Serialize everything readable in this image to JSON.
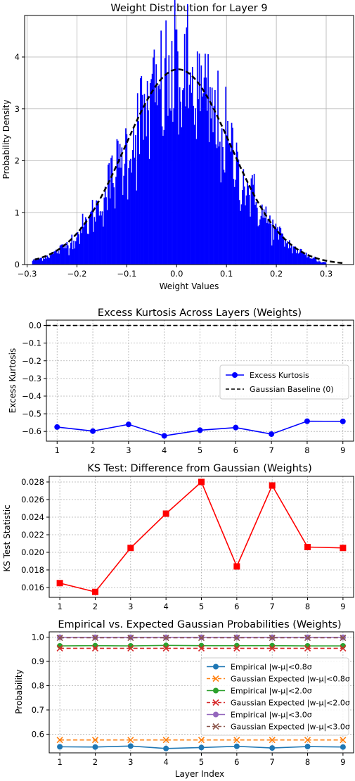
{
  "chart_data": [
    {
      "type": "histogram",
      "title": "Weight Distribution for Layer 9",
      "xlabel": "Weight Values",
      "ylabel": "Probability Density",
      "xlim": [
        -0.305,
        0.355
      ],
      "ylim": [
        0,
        4.8
      ],
      "xticks": [
        -0.3,
        -0.2,
        -0.1,
        0.0,
        0.1,
        0.2,
        0.3
      ],
      "xtick_labels": [
        "−0.3",
        "−0.2",
        "−0.1",
        "0.0",
        "0.1",
        "0.2",
        "0.3"
      ],
      "yticks": [
        0,
        1,
        2,
        3,
        4
      ],
      "ytick_labels": [
        "0",
        "1",
        "2",
        "3",
        "4"
      ],
      "grid": true,
      "bar_color": "#0000ff",
      "curve_color": "#000000",
      "hist_range": [
        -0.29,
        0.3
      ],
      "peak_value": 4.53,
      "peak_location": -0.001,
      "gaussian": {
        "mean": 0.003,
        "std": 0.106,
        "x_range": [
          -0.285,
          0.335
        ]
      }
    },
    {
      "type": "line",
      "title": "Excess Kurtosis Across Layers (Weights)",
      "xlabel": "",
      "ylabel": "Excess Kurtosis",
      "x": [
        1,
        2,
        3,
        4,
        5,
        6,
        7,
        8,
        9
      ],
      "xlim": [
        0.7,
        9.3
      ],
      "ylim": [
        -0.655,
        0.03
      ],
      "yticks": [
        0.0,
        -0.1,
        -0.2,
        -0.3,
        -0.4,
        -0.5,
        -0.6
      ],
      "ytick_labels": [
        "0.0",
        "−0.1",
        "−0.2",
        "−0.3",
        "−0.4",
        "−0.5",
        "−0.6"
      ],
      "grid": true,
      "series": [
        {
          "name": "Excess Kurtosis",
          "values": [
            -0.575,
            -0.598,
            -0.56,
            -0.625,
            -0.593,
            -0.578,
            -0.615,
            -0.542,
            -0.543
          ],
          "color": "#0000ff",
          "marker": "circle",
          "linestyle": "solid"
        },
        {
          "name": "Gaussian Baseline (0)",
          "values": [
            0,
            0,
            0,
            0,
            0,
            0,
            0,
            0,
            0
          ],
          "color": "#000000",
          "marker": "none",
          "linestyle": "dashed"
        }
      ],
      "legend": "center-right"
    },
    {
      "type": "line",
      "title": "KS Test: Difference from Gaussian (Weights)",
      "xlabel": "",
      "ylabel": "KS Test Statistic",
      "x": [
        1,
        2,
        3,
        4,
        5,
        6,
        7,
        8,
        9
      ],
      "xlim": [
        0.7,
        9.3
      ],
      "ylim": [
        0.01488,
        0.02864
      ],
      "yticks": [
        0.016,
        0.018,
        0.02,
        0.022,
        0.024,
        0.026,
        0.028
      ],
      "ytick_labels": [
        "0.016",
        "0.018",
        "0.020",
        "0.022",
        "0.024",
        "0.026",
        "0.028"
      ],
      "grid": true,
      "series": [
        {
          "values": [
            0.0165,
            0.0155,
            0.0205,
            0.0244,
            0.028,
            0.0184,
            0.0276,
            0.0206,
            0.0205
          ],
          "color": "#ff0000",
          "marker": "square",
          "linestyle": "solid"
        }
      ]
    },
    {
      "type": "line",
      "title": "Empirical vs. Expected Gaussian Probabilities (Weights)",
      "xlabel": "Layer Index",
      "ylabel": "Probability",
      "x": [
        1,
        2,
        3,
        4,
        5,
        6,
        7,
        8,
        9
      ],
      "xlim": [
        0.7,
        9.3
      ],
      "ylim": [
        0.523,
        1.022
      ],
      "yticks": [
        0.6,
        0.7,
        0.8,
        0.9,
        1.0
      ],
      "ytick_labels": [
        "0.6",
        "0.7",
        "0.8",
        "0.9",
        "1.0"
      ],
      "grid": true,
      "series": [
        {
          "name": "Empirical |w-μ|<0.8σ",
          "values": [
            0.548,
            0.547,
            0.551,
            0.541,
            0.545,
            0.55,
            0.543,
            0.549,
            0.547
          ],
          "color": "#1f77b4",
          "marker": "circle",
          "linestyle": "solid"
        },
        {
          "name": "Gaussian Expected |w-μ|<0.8σ",
          "values": [
            0.576,
            0.576,
            0.576,
            0.576,
            0.576,
            0.576,
            0.576,
            0.576,
            0.576
          ],
          "color": "#ff7f0e",
          "marker": "x",
          "linestyle": "dashed"
        },
        {
          "name": "Empirical |w-μ|<2.0σ",
          "values": [
            0.964,
            0.965,
            0.964,
            0.966,
            0.965,
            0.965,
            0.965,
            0.964,
            0.964
          ],
          "color": "#2ca02c",
          "marker": "circle",
          "linestyle": "solid"
        },
        {
          "name": "Gaussian Expected |w-μ|<2.0σ",
          "values": [
            0.954,
            0.954,
            0.954,
            0.954,
            0.954,
            0.954,
            0.954,
            0.954,
            0.954
          ],
          "color": "#d62728",
          "marker": "x",
          "linestyle": "dashed"
        },
        {
          "name": "Empirical |w-μ|<3.0σ",
          "values": [
            0.9995,
            0.9995,
            0.9995,
            0.9995,
            0.9995,
            0.9995,
            0.9995,
            0.9995,
            0.9995
          ],
          "color": "#9467bd",
          "marker": "circle",
          "linestyle": "solid"
        },
        {
          "name": "Gaussian Expected |w-μ|<3.0σ",
          "values": [
            0.9973,
            0.9973,
            0.9973,
            0.9973,
            0.9973,
            0.9973,
            0.9973,
            0.9973,
            0.9973
          ],
          "color": "#8c564b",
          "marker": "x",
          "linestyle": "dashed"
        }
      ],
      "legend": "center-right"
    }
  ]
}
